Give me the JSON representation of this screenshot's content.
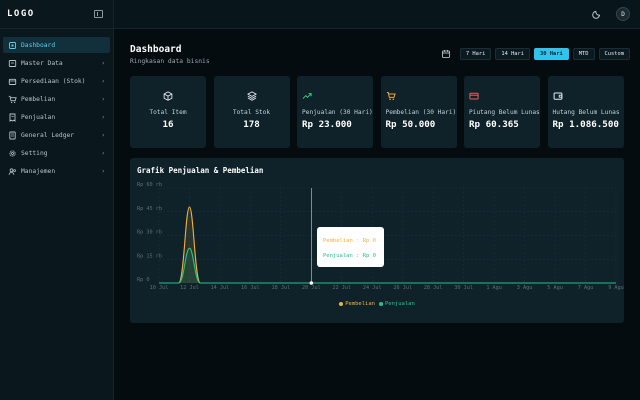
{
  "app": {
    "logo": "LOGO"
  },
  "sidebar": {
    "items": [
      {
        "label": "Dashboard",
        "icon": "home-icon",
        "active": true,
        "has_children": false
      },
      {
        "label": "Master Data",
        "icon": "folder-icon",
        "active": false,
        "has_children": true
      },
      {
        "label": "Persediaan (Stok)",
        "icon": "box-icon",
        "active": false,
        "has_children": true
      },
      {
        "label": "Pembelian",
        "icon": "cart-icon",
        "active": false,
        "has_children": true
      },
      {
        "label": "Penjualan",
        "icon": "receipt-icon",
        "active": false,
        "has_children": true
      },
      {
        "label": "General Ledger",
        "icon": "ledger-icon",
        "active": false,
        "has_children": true
      },
      {
        "label": "Setting",
        "icon": "gear-icon",
        "active": false,
        "has_children": true
      },
      {
        "label": "Manajemen",
        "icon": "users-icon",
        "active": false,
        "has_children": true
      }
    ]
  },
  "topbar": {
    "avatar_initial": "D"
  },
  "page": {
    "title": "Dashboard",
    "subtitle": "Ringkasan data bisnis"
  },
  "range_buttons": [
    "7 Hari",
    "14 Hari",
    "30 Hari",
    "MTD",
    "Custom"
  ],
  "active_range": "30 Hari",
  "cards": [
    {
      "label": "Total Item",
      "value": "16",
      "icon": "cube-icon",
      "icon_color": "#e6edf0"
    },
    {
      "label": "Total Stok",
      "value": "178",
      "icon": "layers-icon",
      "icon_color": "#e6edf0"
    },
    {
      "label": "Penjualan (30 Hari)",
      "value": "Rp 23.000",
      "icon": "trending-up-icon",
      "icon_color": "#2bd27a"
    },
    {
      "label": "Pembelian (30 Hari)",
      "value": "Rp 50.000",
      "icon": "cart-icon",
      "icon_color": "#f2a93b"
    },
    {
      "label": "Piutang Belum Lunas",
      "value": "Rp 60.365",
      "icon": "credit-card-icon",
      "icon_color": "#f05d5d"
    },
    {
      "label": "Hutang Belum Lunas",
      "value": "Rp 1.086.500",
      "icon": "wallet-icon",
      "icon_color": "#e6edf0"
    }
  ],
  "colors": {
    "accent": "#30c3ee",
    "pembelian": "#f2b23a",
    "penjualan": "#22c58b"
  },
  "chart_data": {
    "type": "area",
    "title": "Grafik Penjualan & Pembelian",
    "categories": [
      "10 Jul",
      "12 Jul",
      "14 Jul",
      "16 Jul",
      "18 Jul",
      "20 Jul",
      "22 Jul",
      "24 Jul",
      "26 Jul",
      "28 Jul",
      "30 Jul",
      "1 Agu",
      "3 Agu",
      "5 Agu",
      "7 Agu",
      "9 Agu"
    ],
    "y_ticks": [
      "Rp 0",
      "Rp 15 rb",
      "Rp 30 rb",
      "Rp 45 rb",
      "Rp 60 rb"
    ],
    "ylim": [
      0,
      60000
    ],
    "series": [
      {
        "name": "Pembelian",
        "peak": 48000
      },
      {
        "name": "Penjualan",
        "peak": 22000
      }
    ],
    "grid": true,
    "legend": "bottom",
    "tooltip": {
      "lines": [
        {
          "label": "Pembelian : Rp 0",
          "color": "#f2b23a"
        },
        {
          "label": "Penjualan : Rp 0",
          "color": "#22c58b"
        }
      ]
    }
  }
}
